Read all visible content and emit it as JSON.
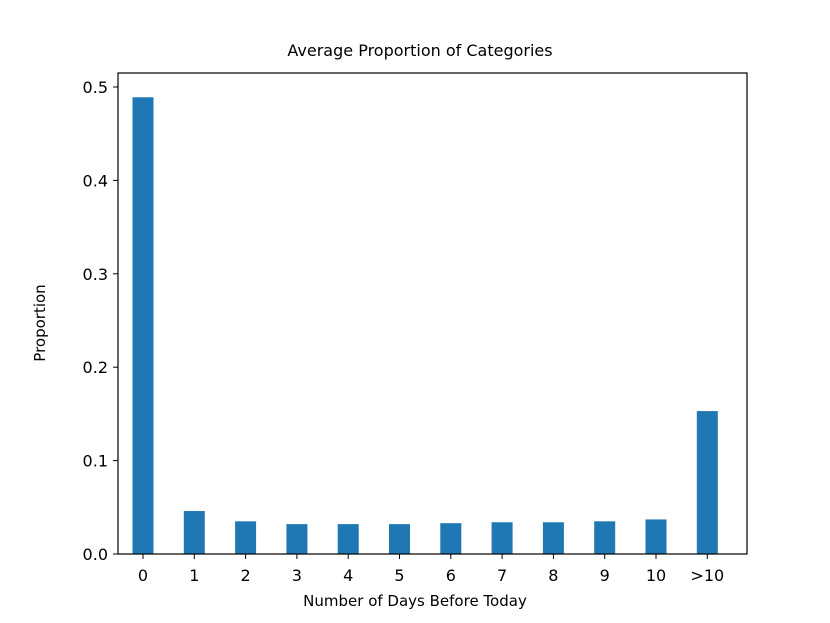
{
  "chart_data": {
    "type": "bar",
    "title": "Average Proportion of Categories",
    "xlabel": "Number of Days Before Today",
    "ylabel": "Proportion",
    "categories": [
      "0",
      "1",
      "2",
      "3",
      "4",
      "5",
      "6",
      "7",
      "8",
      "9",
      "10",
      ">10"
    ],
    "values": [
      0.489,
      0.046,
      0.035,
      0.032,
      0.032,
      0.032,
      0.033,
      0.034,
      0.034,
      0.035,
      0.037,
      0.153
    ],
    "ylim": [
      0,
      0.52
    ],
    "yticks": [
      "0.0",
      "0.1",
      "0.2",
      "0.3",
      "0.4",
      "0.5"
    ],
    "grid": false,
    "bar_color": "#1f77b4"
  }
}
